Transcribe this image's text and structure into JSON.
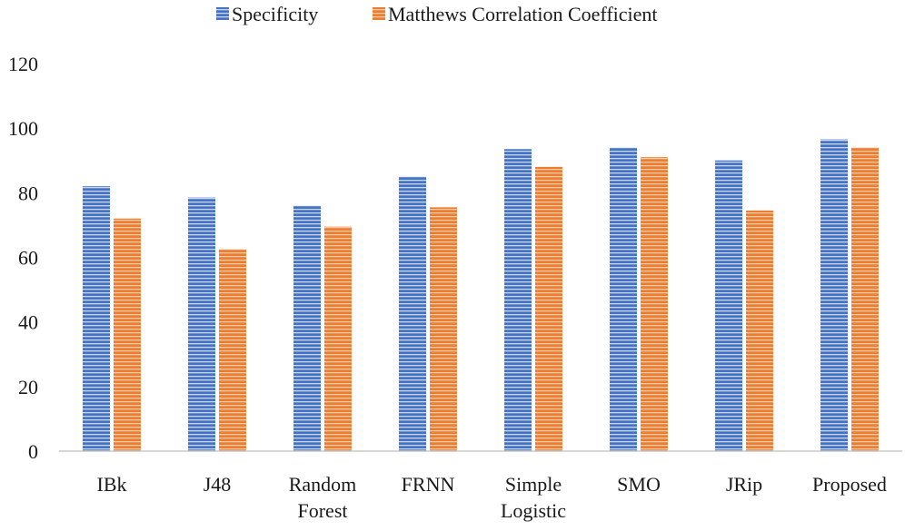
{
  "chart_data": {
    "type": "bar",
    "title": "",
    "xlabel": "",
    "ylabel": "",
    "ylim": [
      0,
      120
    ],
    "yticks": [
      0,
      20,
      40,
      60,
      80,
      100,
      120
    ],
    "grid": false,
    "legend_position": "top-center",
    "categories": [
      [
        "IBk"
      ],
      [
        "J48"
      ],
      [
        "Random",
        "Forest"
      ],
      [
        "FRNN"
      ],
      [
        "Simple",
        "Logistic"
      ],
      [
        "SMO"
      ],
      [
        "JRip"
      ],
      [
        "Proposed"
      ]
    ],
    "series": [
      {
        "name": "Specificity",
        "color": "#4472C4",
        "values": [
          82,
          78.5,
          76,
          85,
          93.5,
          94,
          90,
          96.5
        ]
      },
      {
        "name": "Matthews Correlation Coefficient",
        "color": "#ED7D31",
        "values": [
          72,
          62.5,
          69.5,
          75.5,
          88,
          91,
          74.5,
          94
        ]
      }
    ]
  }
}
